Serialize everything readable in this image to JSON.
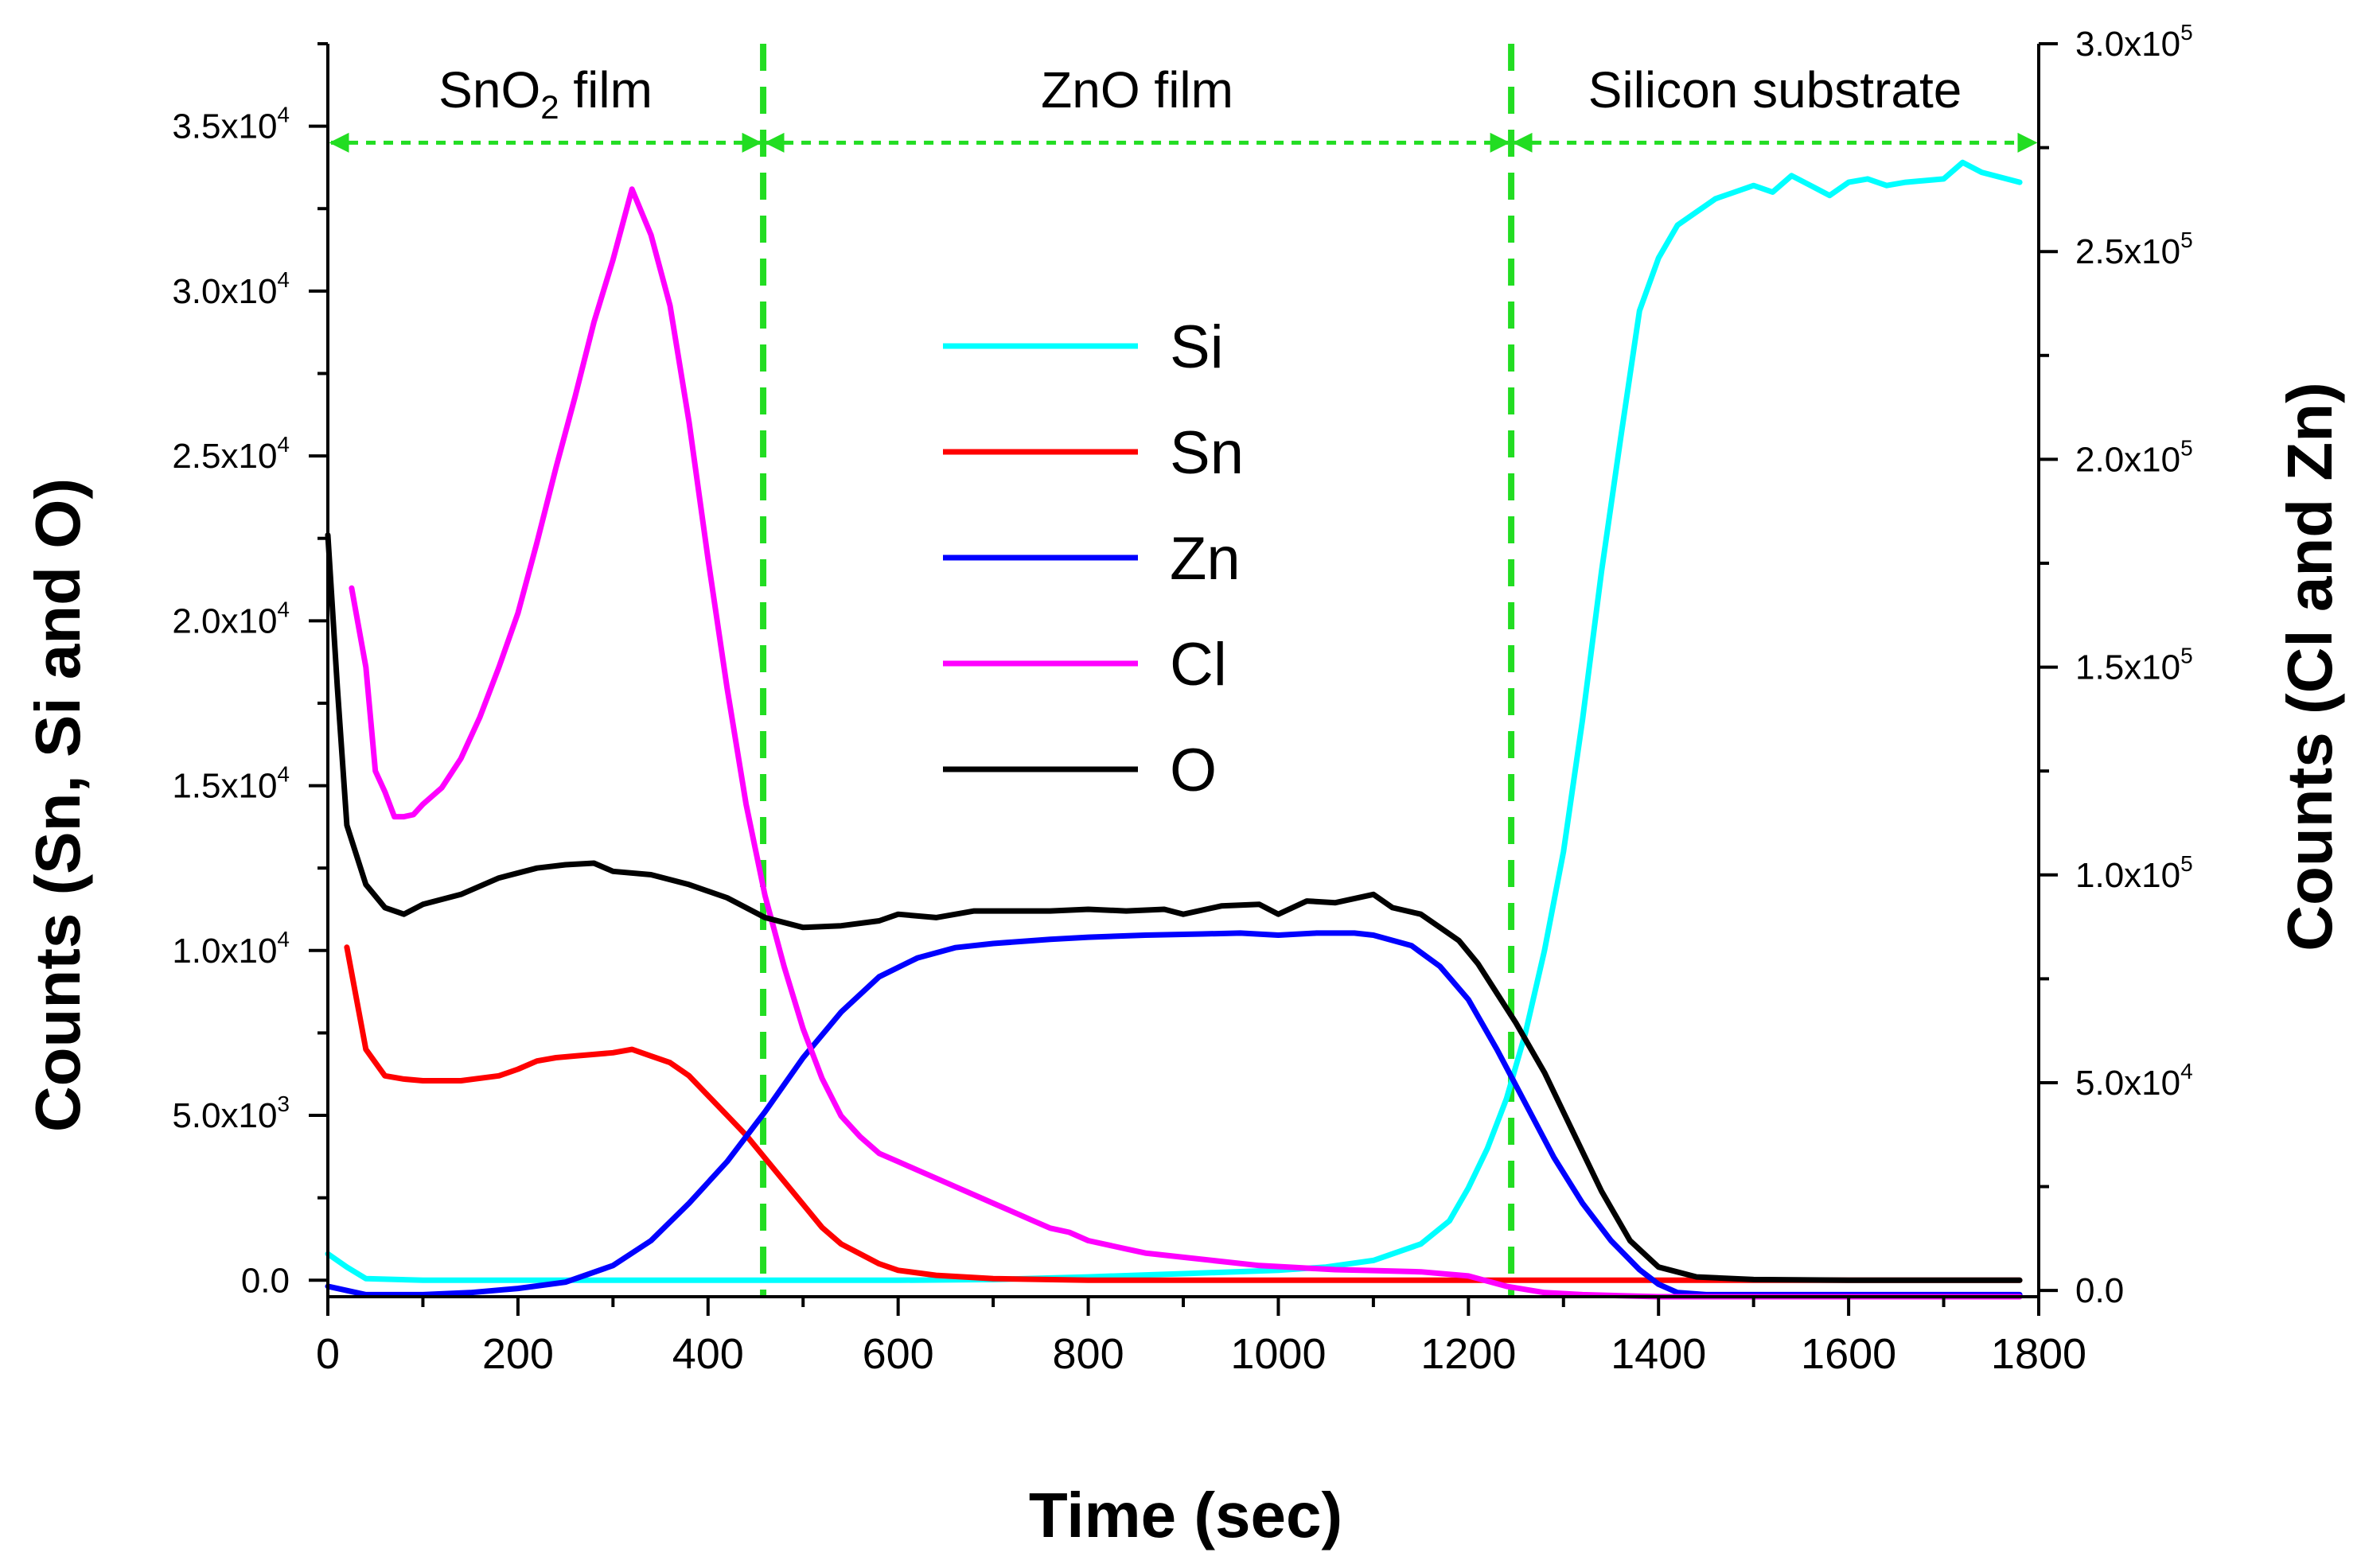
{
  "chart_data": {
    "type": "line",
    "xlabel": "Time (sec)",
    "ylabel_left": "Counts (Sn, Si and O)",
    "ylabel_right": "Counts (Cl and Zn)",
    "xlim": [
      0,
      1800
    ],
    "ylim_left": [
      -500,
      37500
    ],
    "ylim_right": [
      -1500,
      300000
    ],
    "x_ticks": [
      0,
      200,
      400,
      600,
      800,
      1000,
      1200,
      1400,
      1600,
      1800
    ],
    "y_left_ticks": [
      {
        "value": 0,
        "text": "0.0",
        "exp": ""
      },
      {
        "value": 5000,
        "text": "5.0x10",
        "exp": "3"
      },
      {
        "value": 10000,
        "text": "1.0x10",
        "exp": "4"
      },
      {
        "value": 15000,
        "text": "1.5x10",
        "exp": "4"
      },
      {
        "value": 20000,
        "text": "2.0x10",
        "exp": "4"
      },
      {
        "value": 25000,
        "text": "2.5x10",
        "exp": "4"
      },
      {
        "value": 30000,
        "text": "3.0x10",
        "exp": "4"
      },
      {
        "value": 35000,
        "text": "3.5x10",
        "exp": "4"
      }
    ],
    "y_right_ticks": [
      {
        "value": 0,
        "text": "0.0",
        "exp": ""
      },
      {
        "value": 50000,
        "text": "5.0x10",
        "exp": "4"
      },
      {
        "value": 100000,
        "text": "1.0x10",
        "exp": "5"
      },
      {
        "value": 150000,
        "text": "1.5x10",
        "exp": "5"
      },
      {
        "value": 200000,
        "text": "2.0x10",
        "exp": "5"
      },
      {
        "value": 250000,
        "text": "2.5x10",
        "exp": "5"
      },
      {
        "value": 300000,
        "text": "3.0x10",
        "exp": "5"
      }
    ],
    "regions": [
      {
        "label": "SnO",
        "sub": "2",
        "suffix": " film",
        "from": 0,
        "to": 458
      },
      {
        "label": "ZnO film",
        "sub": "",
        "suffix": "",
        "from": 458,
        "to": 1245
      },
      {
        "label": "Silicon substrate",
        "sub": "",
        "suffix": "",
        "from": 1245,
        "to": 1800
      }
    ],
    "region_dividers": [
      458,
      1245
    ],
    "region_arrow_y_left": 34500,
    "legend": {
      "placement": "center"
    },
    "series": [
      {
        "name": "Si",
        "color": "#00ffff",
        "axis": "left",
        "points": [
          [
            0,
            800
          ],
          [
            20,
            400
          ],
          [
            40,
            50
          ],
          [
            100,
            0
          ],
          [
            200,
            0
          ],
          [
            300,
            0
          ],
          [
            400,
            0
          ],
          [
            500,
            0
          ],
          [
            600,
            0
          ],
          [
            700,
            20
          ],
          [
            800,
            100
          ],
          [
            900,
            200
          ],
          [
            1000,
            300
          ],
          [
            1050,
            400
          ],
          [
            1100,
            600
          ],
          [
            1150,
            1100
          ],
          [
            1180,
            1800
          ],
          [
            1200,
            2800
          ],
          [
            1220,
            4000
          ],
          [
            1240,
            5500
          ],
          [
            1260,
            7500
          ],
          [
            1280,
            10000
          ],
          [
            1300,
            13000
          ],
          [
            1320,
            17000
          ],
          [
            1340,
            21500
          ],
          [
            1360,
            25500
          ],
          [
            1380,
            29400
          ],
          [
            1400,
            31000
          ],
          [
            1420,
            32000
          ],
          [
            1440,
            32400
          ],
          [
            1460,
            32800
          ],
          [
            1480,
            33000
          ],
          [
            1500,
            33200
          ],
          [
            1520,
            33000
          ],
          [
            1540,
            33500
          ],
          [
            1560,
            33200
          ],
          [
            1580,
            32900
          ],
          [
            1600,
            33300
          ],
          [
            1620,
            33400
          ],
          [
            1640,
            33200
          ],
          [
            1660,
            33300
          ],
          [
            1700,
            33400
          ],
          [
            1720,
            33900
          ],
          [
            1740,
            33600
          ],
          [
            1780,
            33300
          ]
        ]
      },
      {
        "name": "Sn",
        "color": "#ff0000",
        "axis": "left",
        "points": [
          [
            20,
            10100
          ],
          [
            40,
            7000
          ],
          [
            60,
            6200
          ],
          [
            80,
            6100
          ],
          [
            100,
            6050
          ],
          [
            140,
            6050
          ],
          [
            180,
            6200
          ],
          [
            200,
            6400
          ],
          [
            220,
            6650
          ],
          [
            240,
            6750
          ],
          [
            260,
            6800
          ],
          [
            280,
            6850
          ],
          [
            300,
            6900
          ],
          [
            320,
            7000
          ],
          [
            340,
            6800
          ],
          [
            360,
            6600
          ],
          [
            380,
            6200
          ],
          [
            400,
            5600
          ],
          [
            420,
            5000
          ],
          [
            440,
            4400
          ],
          [
            460,
            3700
          ],
          [
            480,
            3000
          ],
          [
            500,
            2300
          ],
          [
            520,
            1600
          ],
          [
            540,
            1100
          ],
          [
            560,
            800
          ],
          [
            580,
            500
          ],
          [
            600,
            300
          ],
          [
            640,
            150
          ],
          [
            700,
            50
          ],
          [
            800,
            0
          ],
          [
            1000,
            0
          ],
          [
            1200,
            0
          ],
          [
            1400,
            0
          ],
          [
            1600,
            0
          ],
          [
            1780,
            0
          ]
        ]
      },
      {
        "name": "Zn",
        "color": "#0000ff",
        "axis": "right",
        "points": [
          [
            0,
            1000
          ],
          [
            40,
            -1000
          ],
          [
            100,
            -1000
          ],
          [
            150,
            -500
          ],
          [
            200,
            500
          ],
          [
            250,
            2000
          ],
          [
            300,
            6000
          ],
          [
            340,
            12000
          ],
          [
            380,
            21000
          ],
          [
            420,
            31000
          ],
          [
            460,
            43000
          ],
          [
            500,
            56000
          ],
          [
            540,
            67000
          ],
          [
            580,
            75500
          ],
          [
            620,
            80000
          ],
          [
            660,
            82500
          ],
          [
            700,
            83500
          ],
          [
            760,
            84500
          ],
          [
            800,
            85000
          ],
          [
            860,
            85500
          ],
          [
            920,
            85800
          ],
          [
            960,
            86000
          ],
          [
            1000,
            85500
          ],
          [
            1040,
            86000
          ],
          [
            1080,
            86000
          ],
          [
            1100,
            85500
          ],
          [
            1140,
            83000
          ],
          [
            1170,
            78000
          ],
          [
            1200,
            70000
          ],
          [
            1230,
            58000
          ],
          [
            1260,
            45000
          ],
          [
            1290,
            32000
          ],
          [
            1320,
            21000
          ],
          [
            1350,
            12000
          ],
          [
            1380,
            5000
          ],
          [
            1400,
            1500
          ],
          [
            1420,
            -500
          ],
          [
            1450,
            -1000
          ],
          [
            1600,
            -1000
          ],
          [
            1780,
            -1000
          ]
        ]
      },
      {
        "name": "Cl",
        "color": "#ff00ff",
        "axis": "right",
        "points": [
          [
            25,
            169000
          ],
          [
            40,
            150000
          ],
          [
            50,
            125000
          ],
          [
            60,
            120000
          ],
          [
            70,
            114000
          ],
          [
            80,
            114000
          ],
          [
            90,
            114500
          ],
          [
            100,
            117000
          ],
          [
            120,
            121000
          ],
          [
            140,
            128000
          ],
          [
            160,
            138000
          ],
          [
            180,
            150000
          ],
          [
            200,
            163000
          ],
          [
            220,
            180000
          ],
          [
            240,
            198000
          ],
          [
            260,
            215000
          ],
          [
            280,
            233000
          ],
          [
            300,
            248000
          ],
          [
            320,
            265000
          ],
          [
            340,
            254000
          ],
          [
            360,
            237000
          ],
          [
            380,
            209000
          ],
          [
            400,
            176000
          ],
          [
            420,
            145000
          ],
          [
            440,
            117000
          ],
          [
            460,
            95000
          ],
          [
            480,
            78000
          ],
          [
            500,
            63000
          ],
          [
            520,
            51000
          ],
          [
            540,
            42000
          ],
          [
            560,
            37000
          ],
          [
            580,
            33000
          ],
          [
            600,
            31000
          ],
          [
            620,
            29000
          ],
          [
            640,
            27000
          ],
          [
            660,
            25000
          ],
          [
            680,
            23000
          ],
          [
            700,
            21000
          ],
          [
            720,
            19000
          ],
          [
            740,
            17000
          ],
          [
            760,
            15000
          ],
          [
            780,
            14000
          ],
          [
            800,
            12000
          ],
          [
            820,
            11000
          ],
          [
            840,
            10000
          ],
          [
            860,
            9000
          ],
          [
            900,
            8000
          ],
          [
            940,
            7000
          ],
          [
            980,
            6000
          ],
          [
            1020,
            5500
          ],
          [
            1060,
            5000
          ],
          [
            1100,
            4800
          ],
          [
            1150,
            4500
          ],
          [
            1200,
            3500
          ],
          [
            1240,
            1000
          ],
          [
            1280,
            -500
          ],
          [
            1320,
            -1000
          ],
          [
            1400,
            -1500
          ],
          [
            1600,
            -1500
          ],
          [
            1780,
            -1500
          ]
        ]
      },
      {
        "name": "O",
        "color": "#000000",
        "axis": "left",
        "points": [
          [
            0,
            22600
          ],
          [
            10,
            18000
          ],
          [
            20,
            13800
          ],
          [
            40,
            12000
          ],
          [
            60,
            11300
          ],
          [
            80,
            11100
          ],
          [
            100,
            11400
          ],
          [
            140,
            11700
          ],
          [
            180,
            12200
          ],
          [
            220,
            12500
          ],
          [
            250,
            12600
          ],
          [
            280,
            12650
          ],
          [
            300,
            12400
          ],
          [
            340,
            12300
          ],
          [
            380,
            12000
          ],
          [
            420,
            11600
          ],
          [
            460,
            11000
          ],
          [
            500,
            10700
          ],
          [
            540,
            10750
          ],
          [
            580,
            10900
          ],
          [
            600,
            11100
          ],
          [
            640,
            11000
          ],
          [
            680,
            11200
          ],
          [
            720,
            11200
          ],
          [
            760,
            11200
          ],
          [
            800,
            11250
          ],
          [
            840,
            11200
          ],
          [
            880,
            11250
          ],
          [
            900,
            11100
          ],
          [
            940,
            11350
          ],
          [
            980,
            11400
          ],
          [
            1000,
            11100
          ],
          [
            1030,
            11500
          ],
          [
            1060,
            11450
          ],
          [
            1100,
            11700
          ],
          [
            1120,
            11300
          ],
          [
            1150,
            11100
          ],
          [
            1170,
            10700
          ],
          [
            1190,
            10300
          ],
          [
            1210,
            9600
          ],
          [
            1230,
            8700
          ],
          [
            1250,
            7800
          ],
          [
            1280,
            6300
          ],
          [
            1310,
            4500
          ],
          [
            1340,
            2700
          ],
          [
            1370,
            1200
          ],
          [
            1400,
            400
          ],
          [
            1440,
            100
          ],
          [
            1500,
            20
          ],
          [
            1600,
            0
          ],
          [
            1700,
            0
          ],
          [
            1780,
            0
          ]
        ]
      }
    ]
  }
}
